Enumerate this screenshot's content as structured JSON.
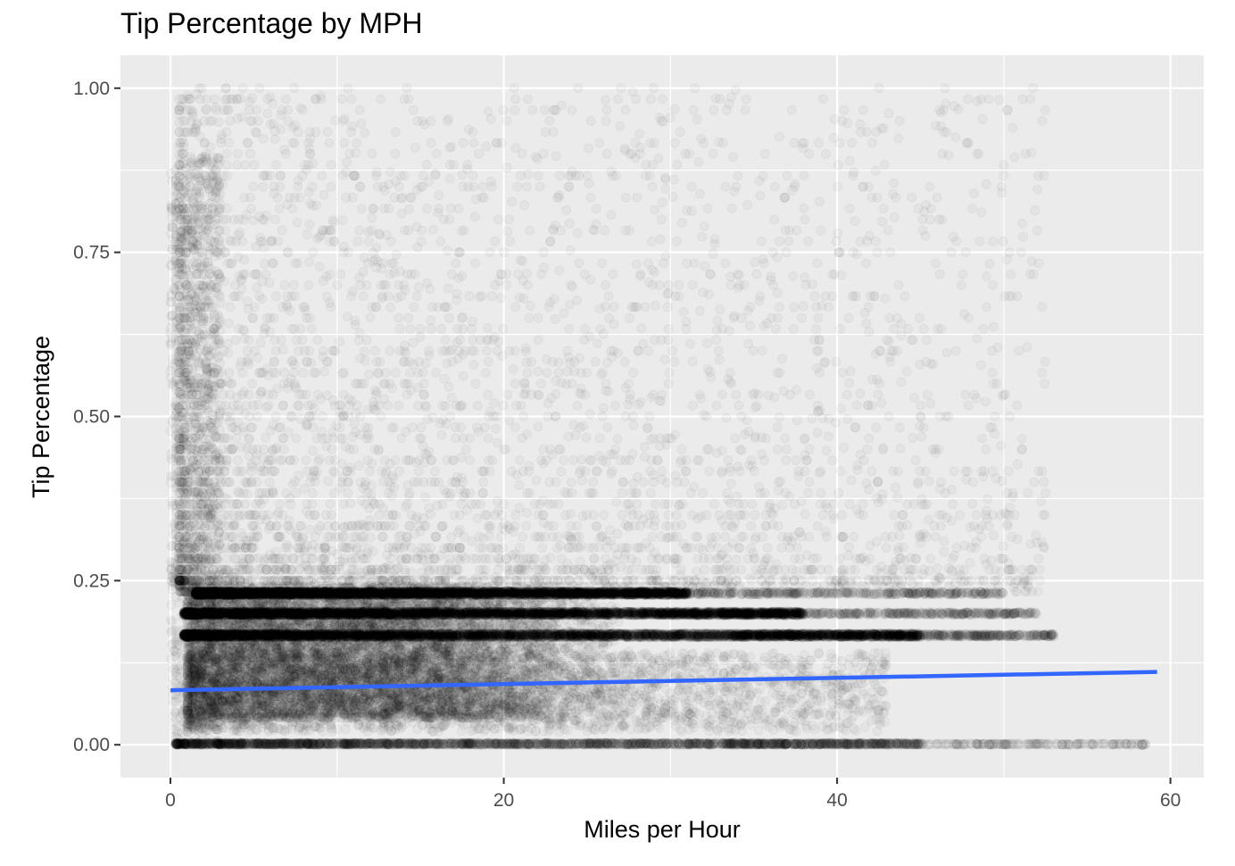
{
  "chart_data": {
    "type": "scatter",
    "title": "Tip Percentage by MPH",
    "xlabel": "Miles per Hour",
    "ylabel": "Tip Percentage",
    "xlim": [
      -3,
      62
    ],
    "ylim": [
      -0.05,
      1.05
    ],
    "x_ticks": [
      0,
      20,
      40,
      60
    ],
    "x_tick_labels": [
      "0",
      "20",
      "40",
      "60"
    ],
    "x_minor_ticks": [
      10,
      30,
      50
    ],
    "y_ticks": [
      0,
      0.25,
      0.5,
      0.75,
      1.0
    ],
    "y_tick_labels": [
      "0.00",
      "0.25",
      "0.50",
      "0.75",
      "1.00"
    ],
    "y_minor_ticks": [
      0.125,
      0.375,
      0.625,
      0.875
    ],
    "grid": true,
    "panel_background": "#ebebeb",
    "grid_color": "#ffffff",
    "point_color": "#000000",
    "point_alpha": 0.03,
    "trend_color": "#3366ff",
    "bands": [
      {
        "y": 0.0,
        "x_start": 0.3,
        "x_end": 45,
        "tail_end": 58.5
      },
      {
        "y": 0.1667,
        "x_start": 0.8,
        "x_end": 45,
        "tail_end": 53
      },
      {
        "y": 0.2,
        "x_start": 0.8,
        "x_end": 38,
        "tail_end": 52
      },
      {
        "y": 0.2308,
        "x_start": 1.5,
        "x_end": 31,
        "tail_end": 50
      }
    ],
    "core_region": {
      "x_range": [
        1,
        28
      ],
      "y_range": [
        0.04,
        0.24
      ]
    },
    "trend_line": {
      "x": [
        0,
        59.2
      ],
      "y": [
        0.083,
        0.111
      ]
    },
    "series": [
      {
        "name": "",
        "description_points": [
          {
            "x": 58.3,
            "y": 0.0
          }
        ]
      }
    ]
  }
}
